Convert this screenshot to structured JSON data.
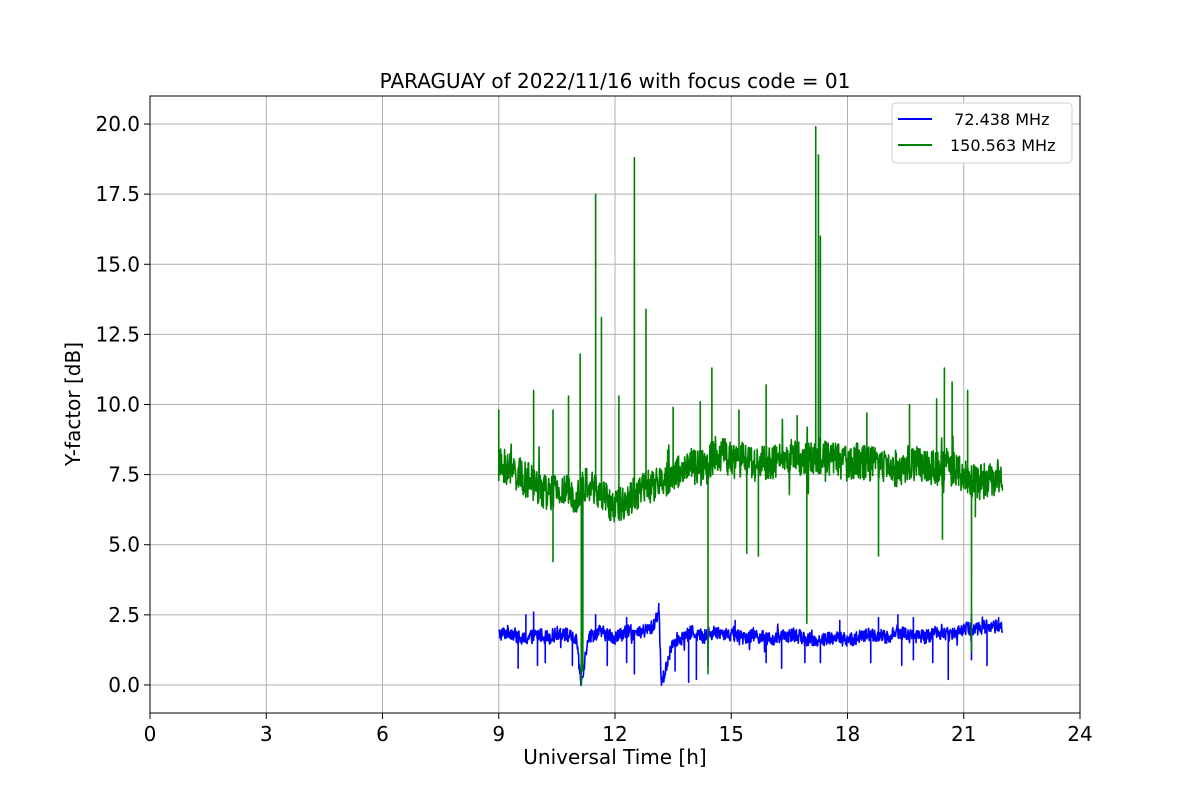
{
  "chart_data": {
    "type": "line",
    "title": "PARAGUAY of 2022/11/16 with focus code = 01",
    "xlabel": "Universal Time [h]",
    "ylabel": "Y-factor [dB]",
    "xlim": [
      0,
      24
    ],
    "ylim": [
      -1,
      21
    ],
    "xticks": [
      0,
      3,
      6,
      9,
      12,
      15,
      18,
      21,
      24
    ],
    "xtick_labels": [
      "0",
      "3",
      "6",
      "9",
      "12",
      "15",
      "18",
      "21",
      "24"
    ],
    "yticks": [
      0,
      2.5,
      5,
      7.5,
      10,
      12.5,
      15,
      17.5,
      20
    ],
    "ytick_labels": [
      "0.0",
      "2.5",
      "5.0",
      "7.5",
      "10.0",
      "12.5",
      "15.0",
      "17.5",
      "20.0"
    ],
    "grid": true,
    "legend_position": "top-right",
    "series": [
      {
        "name": "  72.438 MHz",
        "color": "#0000ff",
        "x_range": [
          9.0,
          22.0
        ],
        "points": [
          [
            9.0,
            1.8
          ],
          [
            9.3,
            1.9
          ],
          [
            9.6,
            1.6
          ],
          [
            10.0,
            1.8
          ],
          [
            10.3,
            1.7
          ],
          [
            10.6,
            1.9
          ],
          [
            11.0,
            1.6
          ],
          [
            11.13,
            0.0
          ],
          [
            11.3,
            1.7
          ],
          [
            11.6,
            1.9
          ],
          [
            12.0,
            1.7
          ],
          [
            12.3,
            1.9
          ],
          [
            12.6,
            1.8
          ],
          [
            13.0,
            2.1
          ],
          [
            13.13,
            2.7
          ],
          [
            13.2,
            0.0
          ],
          [
            13.5,
            1.6
          ],
          [
            13.8,
            1.7
          ],
          [
            14.0,
            1.9
          ],
          [
            14.3,
            1.7
          ],
          [
            14.6,
            1.9
          ],
          [
            15.0,
            1.8
          ],
          [
            15.3,
            1.7
          ],
          [
            15.6,
            1.8
          ],
          [
            16.0,
            1.6
          ],
          [
            16.3,
            1.7
          ],
          [
            16.6,
            1.8
          ],
          [
            17.0,
            1.6
          ],
          [
            17.3,
            1.6
          ],
          [
            17.6,
            1.7
          ],
          [
            18.0,
            1.6
          ],
          [
            18.3,
            1.7
          ],
          [
            18.6,
            1.8
          ],
          [
            19.0,
            1.7
          ],
          [
            19.3,
            1.9
          ],
          [
            19.6,
            1.8
          ],
          [
            20.0,
            1.7
          ],
          [
            20.3,
            1.9
          ],
          [
            20.6,
            1.8
          ],
          [
            21.0,
            2.0
          ],
          [
            21.3,
            2.0
          ],
          [
            21.6,
            2.1
          ],
          [
            22.0,
            2.1
          ]
        ],
        "noise_amplitude": 0.25,
        "dips": [
          [
            9.5,
            0.6
          ],
          [
            10.0,
            0.7
          ],
          [
            10.2,
            0.8
          ],
          [
            10.9,
            0.7
          ],
          [
            11.13,
            0.0
          ],
          [
            11.8,
            0.7
          ],
          [
            12.3,
            0.8
          ],
          [
            12.5,
            0.4
          ],
          [
            13.2,
            0.0
          ],
          [
            13.55,
            0.5
          ],
          [
            13.9,
            0.1
          ],
          [
            14.1,
            0.2
          ],
          [
            14.4,
            0.7
          ],
          [
            15.9,
            0.8
          ],
          [
            16.3,
            0.6
          ],
          [
            16.9,
            0.8
          ],
          [
            17.3,
            0.8
          ],
          [
            18.6,
            0.8
          ],
          [
            19.4,
            0.7
          ],
          [
            19.7,
            0.9
          ],
          [
            20.2,
            0.8
          ],
          [
            20.6,
            0.2
          ],
          [
            21.2,
            0.9
          ],
          [
            21.6,
            0.7
          ]
        ],
        "spikes": [
          [
            9.7,
            2.5
          ],
          [
            9.9,
            2.6
          ],
          [
            11.5,
            2.5
          ],
          [
            12.3,
            2.4
          ],
          [
            13.13,
            2.7
          ],
          [
            15.1,
            2.3
          ],
          [
            17.8,
            2.3
          ],
          [
            18.8,
            2.4
          ],
          [
            19.3,
            2.5
          ],
          [
            19.7,
            2.4
          ],
          [
            21.2,
            2.5
          ],
          [
            21.9,
            2.4
          ]
        ]
      },
      {
        "name": "150.563 MHz",
        "color": "#008000",
        "x_range": [
          9.0,
          22.0
        ],
        "points": [
          [
            9.0,
            7.8
          ],
          [
            9.3,
            7.7
          ],
          [
            9.6,
            7.4
          ],
          [
            10.0,
            7.1
          ],
          [
            10.3,
            6.8
          ],
          [
            10.6,
            6.9
          ],
          [
            11.0,
            6.8
          ],
          [
            11.3,
            7.2
          ],
          [
            11.6,
            6.8
          ],
          [
            12.0,
            6.3
          ],
          [
            12.3,
            6.6
          ],
          [
            12.6,
            6.9
          ],
          [
            13.0,
            7.1
          ],
          [
            13.3,
            7.3
          ],
          [
            13.6,
            7.6
          ],
          [
            14.0,
            7.8
          ],
          [
            14.3,
            7.7
          ],
          [
            14.6,
            8.3
          ],
          [
            15.0,
            8.0
          ],
          [
            15.3,
            8.0
          ],
          [
            15.6,
            7.9
          ],
          [
            16.0,
            7.9
          ],
          [
            16.3,
            8.0
          ],
          [
            16.6,
            8.2
          ],
          [
            17.0,
            8.0
          ],
          [
            17.3,
            8.2
          ],
          [
            17.6,
            8.1
          ],
          [
            18.0,
            7.9
          ],
          [
            18.3,
            8.0
          ],
          [
            18.6,
            7.9
          ],
          [
            19.0,
            7.8
          ],
          [
            19.3,
            7.7
          ],
          [
            19.6,
            7.9
          ],
          [
            20.0,
            7.8
          ],
          [
            20.3,
            7.7
          ],
          [
            20.6,
            7.8
          ],
          [
            21.0,
            7.5
          ],
          [
            21.3,
            7.2
          ],
          [
            21.6,
            7.3
          ],
          [
            22.0,
            7.5
          ]
        ],
        "noise_amplitude": 0.65,
        "spikes": [
          [
            9.0,
            9.8
          ],
          [
            9.9,
            10.5
          ],
          [
            10.4,
            9.8
          ],
          [
            10.8,
            10.3
          ],
          [
            11.1,
            11.8
          ],
          [
            11.5,
            17.5
          ],
          [
            11.65,
            13.1
          ],
          [
            12.1,
            10.3
          ],
          [
            12.5,
            18.8
          ],
          [
            12.8,
            13.4
          ],
          [
            13.5,
            9.9
          ],
          [
            14.2,
            10.1
          ],
          [
            14.5,
            11.3
          ],
          [
            15.2,
            9.8
          ],
          [
            15.9,
            10.7
          ],
          [
            16.7,
            9.6
          ],
          [
            17.18,
            19.9
          ],
          [
            17.25,
            18.9
          ],
          [
            17.3,
            16.0
          ],
          [
            18.5,
            9.7
          ],
          [
            19.6,
            10.0
          ],
          [
            20.3,
            10.2
          ],
          [
            20.5,
            11.3
          ],
          [
            20.7,
            10.8
          ],
          [
            21.1,
            10.5
          ]
        ],
        "dips": [
          [
            10.4,
            4.4
          ],
          [
            11.13,
            0.0
          ],
          [
            11.17,
            0.5
          ],
          [
            14.4,
            0.4
          ],
          [
            15.4,
            4.7
          ],
          [
            15.7,
            4.6
          ],
          [
            16.95,
            2.2
          ],
          [
            18.8,
            4.6
          ],
          [
            20.45,
            5.2
          ],
          [
            21.2,
            1.2
          ],
          [
            21.3,
            6.0
          ]
        ]
      }
    ]
  }
}
